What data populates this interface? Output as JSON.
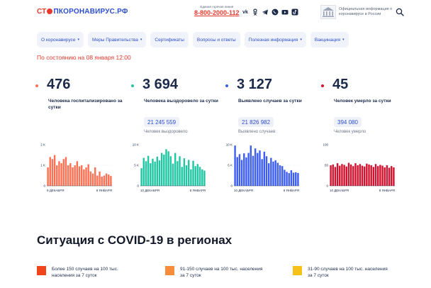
{
  "header": {
    "logo_part1": "СТ",
    "logo_part2": "ПКОРОНАВИРУС.РФ",
    "hotline_label": "Единая горячая линия",
    "hotline_number": "8-800-2000-112",
    "social_icons": [
      "vk-icon",
      "odnoklassniki-icon",
      "telegram-icon",
      "viber-icon",
      "youtube-icon",
      "tiktok-icon"
    ],
    "official_text": "Официальная информация о коронавирусе в России"
  },
  "nav": {
    "items": [
      {
        "label": "О коронавирусе",
        "has_caret": true
      },
      {
        "label": "Меры Правительства",
        "has_caret": true
      },
      {
        "label": "Сертификаты",
        "has_caret": false
      },
      {
        "label": "Вопросы и ответы",
        "has_caret": false
      },
      {
        "label": "Полезная информация",
        "has_caret": true
      },
      {
        "label": "Вакцинация",
        "has_caret": true
      }
    ],
    "caret_glyph": "▾"
  },
  "status_line": "По состоянию на 08 января 12:00",
  "colors": {
    "accent_red": "#e73a2e",
    "brand_blue": "#2d4fcf",
    "hospitalized": "#ff7153",
    "recovered": "#1fc7a3",
    "cases": "#3d5ef0",
    "deaths": "#d3102d",
    "legend_high": "#f0441a",
    "legend_mid": "#f68d3d",
    "legend_low": "#f6c21a"
  },
  "stats": [
    {
      "value": "476",
      "desc": "Человека госпитализировано за сутки",
      "total": "",
      "total_label": ""
    },
    {
      "value": "3 694",
      "desc": "Человека выздоровело за сутки",
      "total": "21 245 559",
      "total_label": "Человек выздоровело"
    },
    {
      "value": "3 127",
      "desc": "Выявлено случаев за сутки",
      "total": "21 826 982",
      "total_label": "Выявлено случаев"
    },
    {
      "value": "45",
      "desc": "Человек умерло за сутки",
      "total": "394 080",
      "total_label": "Человек умерло"
    }
  ],
  "chart_data": [
    {
      "type": "bar",
      "series": [
        {
          "values": [
            900,
            1400,
            1300,
            1500,
            1000,
            1200,
            1100,
            1300,
            1400,
            1000,
            1100,
            900,
            1000,
            1200,
            950,
            1000,
            800,
            900,
            1050,
            700,
            600,
            900,
            500,
            700,
            450,
            500,
            600,
            550,
            480
          ]
        }
      ],
      "ylim": [
        0,
        2000
      ],
      "yticks": [
        "2 K",
        "1 K",
        "0"
      ],
      "x_start_label": "9 ДЕКАБРЯ",
      "x_end_label": "8 ЯНВАРЯ"
    },
    {
      "type": "bar",
      "series": [
        {
          "values": [
            4300,
            6800,
            6000,
            7300,
            5500,
            6600,
            5900,
            7100,
            6200,
            8000,
            7600,
            8900,
            8400,
            7200,
            5400,
            8000,
            6000,
            7200,
            4600,
            6700,
            5000,
            6300,
            4000,
            6100,
            4800,
            5300,
            4600,
            4000,
            3700
          ]
        }
      ],
      "ylim": [
        0,
        10000
      ],
      "yticks": [
        "10 K",
        "5 K",
        "0"
      ],
      "x_start_label": "10 ДЕКАБРЯ",
      "x_end_label": "8 ЯНВАРЯ"
    },
    {
      "type": "bar",
      "series": [
        {
          "values": [
            9800,
            7000,
            7700,
            6300,
            7900,
            6900,
            8000,
            9800,
            7300,
            9100,
            8000,
            8600,
            6500,
            8300,
            7200,
            5500,
            6800,
            5900,
            6200,
            5600,
            5000,
            4800,
            3900,
            3400,
            3100,
            3800,
            3200,
            3300,
            3127
          ]
        }
      ],
      "ylim": [
        0,
        10000
      ],
      "yticks": [
        "10 K",
        "5 K",
        "0"
      ],
      "x_start_label": "10 ДЕКАБРЯ",
      "x_end_label": "8 ЯНВАРЯ"
    },
    {
      "type": "bar",
      "series": [
        {
          "values": [
            50,
            52,
            46,
            55,
            49,
            53,
            51,
            47,
            56,
            52,
            48,
            55,
            50,
            53,
            49,
            47,
            54,
            52,
            50,
            46,
            53,
            48,
            51,
            49,
            45,
            50,
            44,
            48,
            45
          ]
        }
      ],
      "ylim": [
        0,
        100
      ],
      "yticks": [
        "100",
        "50",
        "0"
      ],
      "x_start_label": "10 ДЕКАБРЯ",
      "x_end_label": "8 ЯНВАРЯ"
    }
  ],
  "section_title": "Ситуация с COVID-19 в регионах",
  "legend": [
    {
      "line1": "Более 150 случаев на 100 тыс.",
      "line2": "населения за 7 суток"
    },
    {
      "line1": "91-150 случаев на 100 тыс. населения",
      "line2": "за 7 суток"
    },
    {
      "line1": "31-90 случаев на 100 тыс. населения",
      "line2": "за 7 суток"
    }
  ]
}
